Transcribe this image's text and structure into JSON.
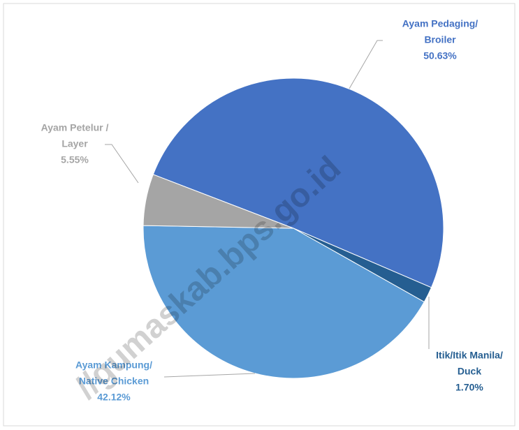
{
  "chart_data": {
    "type": "pie",
    "categories": [
      [
        "Ayam Pedaging/",
        "Broiler"
      ],
      [
        "Itik/Itik Manila/",
        "Duck"
      ],
      [
        "Ayam Kampung/",
        "Native Chicken"
      ],
      [
        "Ayam Petelur /",
        "Layer"
      ]
    ],
    "values": [
      50.63,
      1.7,
      42.12,
      5.55
    ],
    "value_labels": [
      "50.63%",
      "1.70%",
      "42.12%",
      "5.55%"
    ],
    "colors": [
      "#4472c4",
      "#255e91",
      "#5b9bd5",
      "#a5a5a5"
    ],
    "watermark": "//gumaskab.bps.go.id"
  }
}
